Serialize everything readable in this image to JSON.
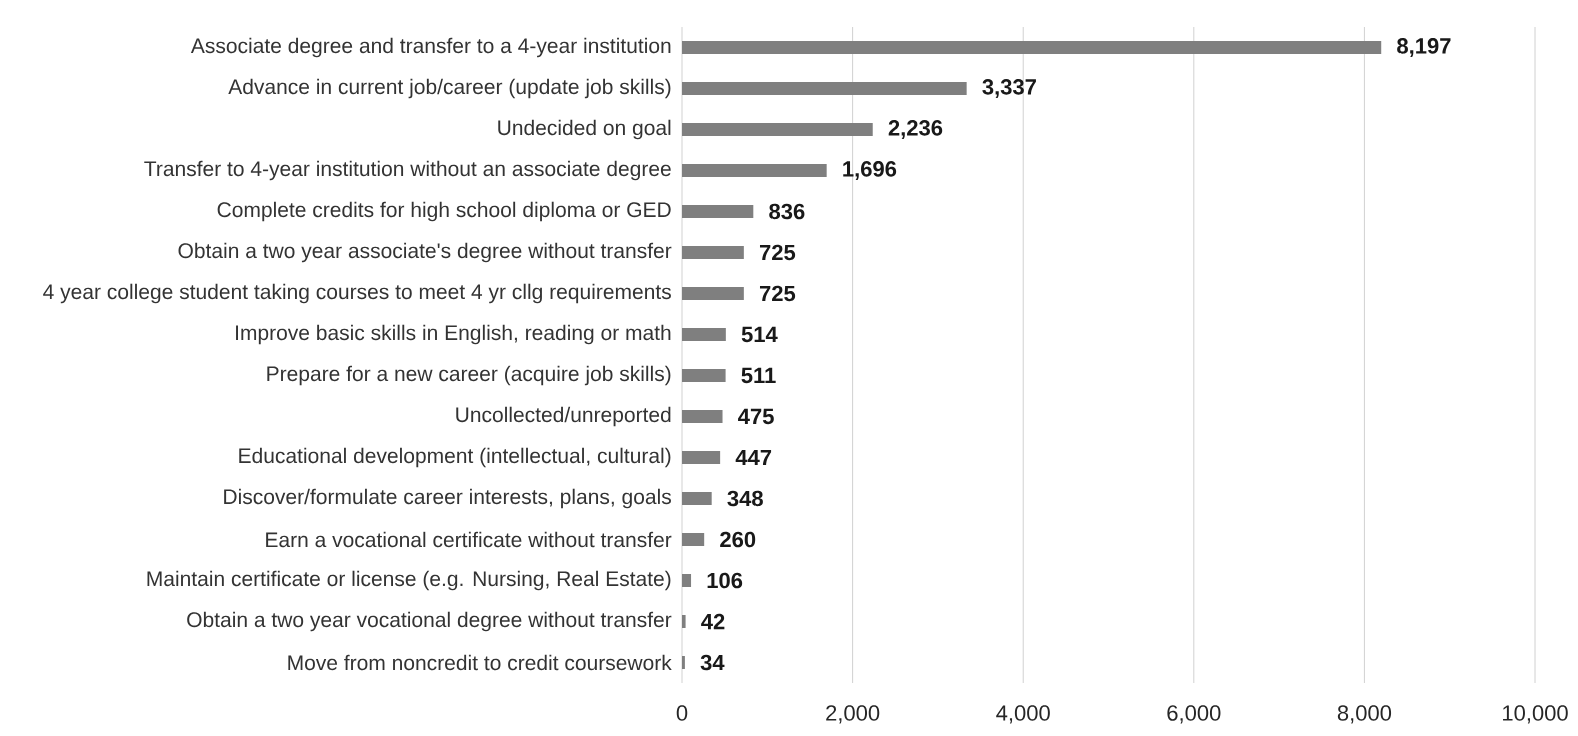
{
  "chart_data": {
    "type": "bar",
    "orientation": "horizontal",
    "categories": [
      "Associate degree and transfer to a 4-year institution",
      "Advance in current job/career (update job skills)",
      "Undecided on goal",
      "Transfer to 4-year institution without an associate degree",
      "Complete credits for high school diploma or GED",
      "Obtain a two year associate's degree without transfer",
      "4 year college student taking courses to meet 4 yr cllg requirements",
      "Improve basic skills in English, reading or math",
      "Prepare for a new career (acquire job skills)",
      "Uncollected/unreported",
      "Educational development (intellectual, cultural)",
      "Discover/formulate career interests, plans, goals",
      "Earn a vocational certificate without transfer",
      "Maintain certificate or license (e.g. Nursing, Real Estate)",
      "Obtain a two year vocational degree without transfer",
      "Move from noncredit to credit coursework"
    ],
    "values": [
      8197,
      3337,
      2236,
      1696,
      836,
      725,
      725,
      514,
      511,
      475,
      447,
      348,
      260,
      106,
      42,
      34
    ],
    "value_labels": [
      "8,197",
      "3,337",
      "2,236",
      "1,696",
      "836",
      "725",
      "725",
      "514",
      "511",
      "475",
      "447",
      "348",
      "260",
      "106",
      "42",
      "34"
    ],
    "color": "#7f7f7f",
    "xlim": [
      0,
      10000
    ],
    "xticks": [
      0,
      {
        "value": 2000,
        "label": "2,000"
      },
      {
        "value": 4000,
        "label": "4,000"
      },
      {
        "value": 6000,
        "label": "6,000"
      },
      {
        "value": 8000,
        "label": "8,000"
      },
      {
        "value": 10000,
        "label": "10,000"
      }
    ],
    "grid": "x"
  }
}
